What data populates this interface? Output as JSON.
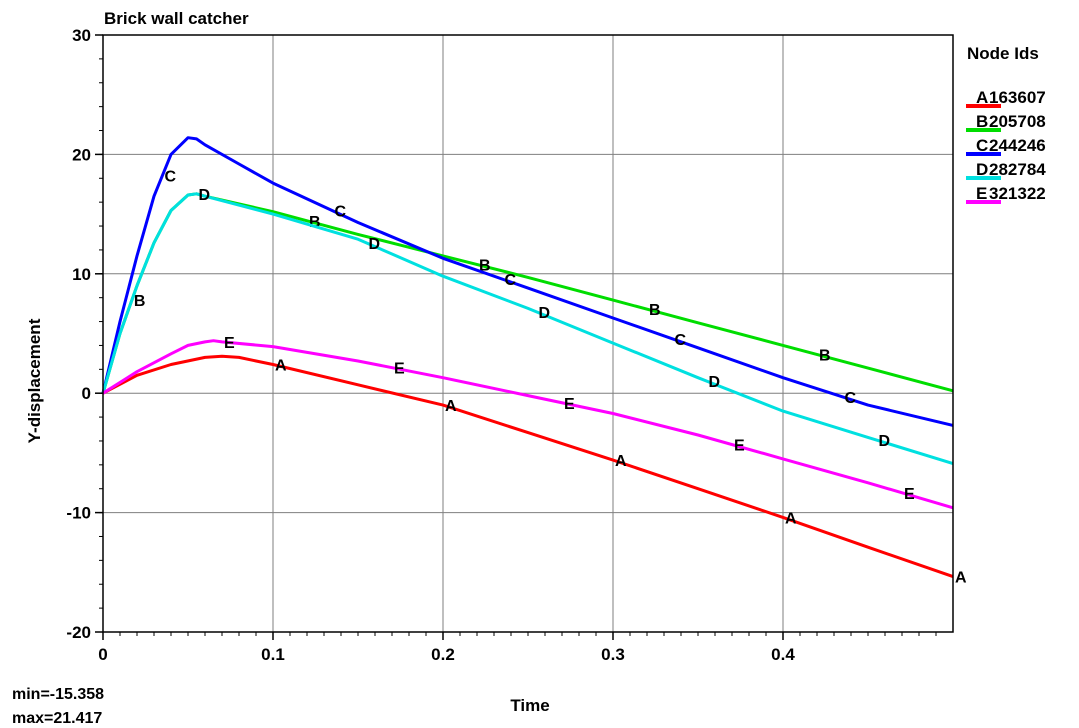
{
  "chart_data": {
    "type": "line",
    "title": "Brick wall catcher",
    "xlabel": "Time",
    "ylabel": "Y-displacement",
    "xlim": [
      0,
      0.5
    ],
    "ylim": [
      -20,
      30
    ],
    "x_ticks": [
      "0",
      "0.1",
      "0.2",
      "0.3",
      "0.4"
    ],
    "y_ticks": [
      "30",
      "20",
      "10",
      "0",
      "-10",
      "-20"
    ],
    "grid": true,
    "legend_title": "Node Ids",
    "legend_position": "right",
    "stats": {
      "min": "min=-15.358",
      "max": "max=21.417"
    },
    "series": [
      {
        "marker": "A",
        "name": "163607",
        "color": "#ff0000",
        "x": [
          0,
          0.02,
          0.04,
          0.06,
          0.07,
          0.08,
          0.1,
          0.15,
          0.2,
          0.25,
          0.3,
          0.35,
          0.4,
          0.45,
          0.5
        ],
        "y": [
          0,
          1.5,
          2.4,
          3.0,
          3.1,
          3.0,
          2.4,
          0.7,
          -1.0,
          -3.3,
          -5.6,
          -8.0,
          -10.4,
          -12.9,
          -15.36
        ],
        "label_x": [
          0.1,
          0.2,
          0.3,
          0.4,
          0.5
        ]
      },
      {
        "marker": "B",
        "name": "205708",
        "color": "#00dd00",
        "x": [
          0,
          0.01,
          0.02,
          0.03,
          0.04,
          0.05,
          0.055,
          0.06,
          0.1,
          0.15,
          0.2,
          0.25,
          0.3,
          0.35,
          0.4,
          0.45,
          0.5
        ],
        "y": [
          0,
          5.0,
          9.0,
          12.6,
          15.3,
          16.6,
          16.7,
          16.5,
          15.2,
          13.3,
          11.5,
          9.7,
          7.8,
          5.9,
          4.0,
          2.1,
          0.2
        ],
        "label_x": [
          0.017,
          0.12,
          0.22,
          0.32,
          0.42
        ]
      },
      {
        "marker": "C",
        "name": "244246",
        "color": "#0000ff",
        "x": [
          0,
          0.01,
          0.02,
          0.03,
          0.04,
          0.05,
          0.055,
          0.06,
          0.08,
          0.1,
          0.15,
          0.2,
          0.25,
          0.3,
          0.35,
          0.4,
          0.45,
          0.5
        ],
        "y": [
          0,
          6.0,
          11.5,
          16.5,
          20.0,
          21.4,
          21.3,
          20.8,
          19.2,
          17.6,
          14.3,
          11.3,
          8.8,
          6.3,
          3.8,
          1.3,
          -1.0,
          -2.7
        ],
        "label_x": [
          0.035,
          0.135,
          0.235,
          0.335,
          0.435
        ]
      },
      {
        "marker": "D",
        "name": "282784",
        "color": "#00e0e0",
        "x": [
          0,
          0.01,
          0.02,
          0.03,
          0.04,
          0.05,
          0.055,
          0.06,
          0.1,
          0.15,
          0.2,
          0.25,
          0.3,
          0.35,
          0.4,
          0.45,
          0.5
        ],
        "y": [
          0,
          5.0,
          9.0,
          12.6,
          15.3,
          16.6,
          16.7,
          16.5,
          15.0,
          12.9,
          9.8,
          7.1,
          4.2,
          1.3,
          -1.5,
          -3.7,
          -5.9
        ],
        "label_x": [
          0.055,
          0.155,
          0.255,
          0.355,
          0.455
        ]
      },
      {
        "marker": "E",
        "name": "321322",
        "color": "#ff00ff",
        "x": [
          0,
          0.02,
          0.04,
          0.05,
          0.06,
          0.065,
          0.07,
          0.1,
          0.15,
          0.2,
          0.25,
          0.3,
          0.35,
          0.4,
          0.45,
          0.5
        ],
        "y": [
          0,
          1.8,
          3.3,
          4.0,
          4.3,
          4.4,
          4.3,
          3.9,
          2.7,
          1.3,
          -0.2,
          -1.7,
          -3.5,
          -5.5,
          -7.5,
          -9.6
        ],
        "label_x": [
          0.07,
          0.17,
          0.27,
          0.37,
          0.47
        ]
      }
    ]
  }
}
